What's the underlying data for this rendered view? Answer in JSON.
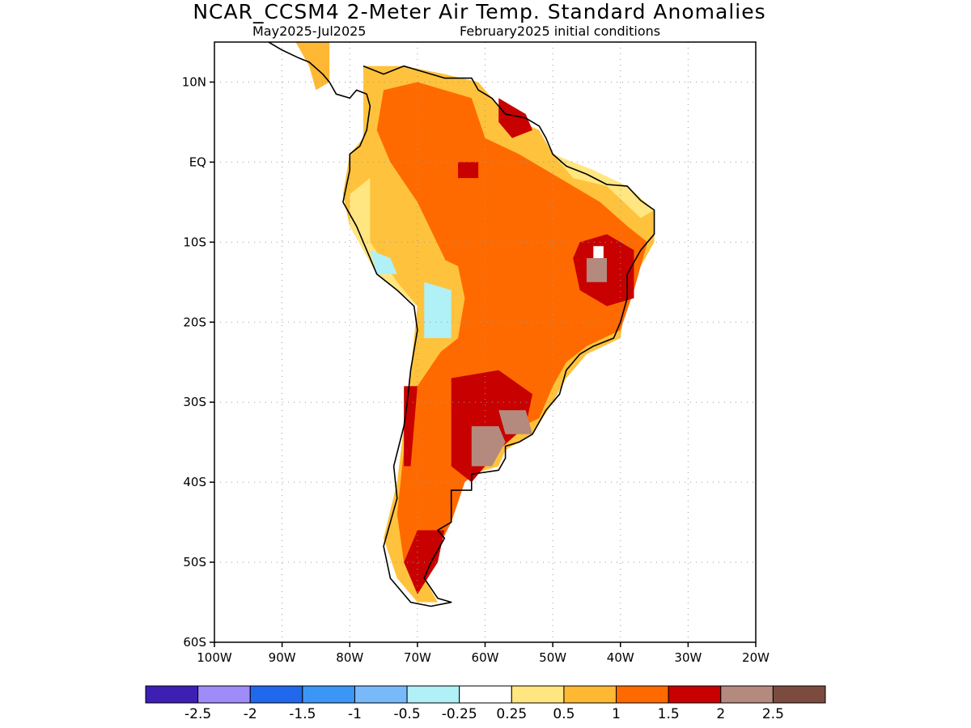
{
  "header": {
    "title": "NCAR_CCSM4 2-Meter Air Temp. Standard Anomalies",
    "period": "May2025-Jul2025",
    "init": "February2025 initial conditions"
  },
  "map": {
    "lon_range": [
      -100,
      -20
    ],
    "lat_range": [
      -60,
      15
    ],
    "x_ticks": [
      {
        "value": -100,
        "label": "100W"
      },
      {
        "value": -90,
        "label": "90W"
      },
      {
        "value": -80,
        "label": "80W"
      },
      {
        "value": -70,
        "label": "70W"
      },
      {
        "value": -60,
        "label": "60W"
      },
      {
        "value": -50,
        "label": "50W"
      },
      {
        "value": -40,
        "label": "40W"
      },
      {
        "value": -30,
        "label": "30W"
      },
      {
        "value": -20,
        "label": "20W"
      }
    ],
    "y_ticks": [
      {
        "value": 10,
        "label": "10N"
      },
      {
        "value": 0,
        "label": "EQ"
      },
      {
        "value": -10,
        "label": "10S"
      },
      {
        "value": -20,
        "label": "20S"
      },
      {
        "value": -30,
        "label": "30S"
      },
      {
        "value": -40,
        "label": "40S"
      },
      {
        "value": -50,
        "label": "50S"
      },
      {
        "value": -60,
        "label": "60S"
      }
    ],
    "gridlines": "dotted",
    "regions": [
      {
        "name": "central-america-warm",
        "level": 0.5,
        "color": "#ffb833",
        "points": [
          [
            -88,
            15
          ],
          [
            -83,
            15
          ],
          [
            -83,
            10
          ],
          [
            -85,
            9
          ],
          [
            -86,
            12
          ]
        ]
      },
      {
        "name": "south-america-base",
        "level": 0.5,
        "color": "#ffc23d",
        "points": [
          [
            -78,
            12
          ],
          [
            -72,
            12
          ],
          [
            -66,
            11
          ],
          [
            -61,
            10
          ],
          [
            -57,
            6
          ],
          [
            -52,
            4
          ],
          [
            -50,
            1
          ],
          [
            -45,
            -1
          ],
          [
            -39,
            -3
          ],
          [
            -35,
            -6
          ],
          [
            -35,
            -10
          ],
          [
            -39,
            -16
          ],
          [
            -40,
            -22
          ],
          [
            -45,
            -24
          ],
          [
            -48,
            -27
          ],
          [
            -50,
            -30
          ],
          [
            -53,
            -34
          ],
          [
            -57,
            -36
          ],
          [
            -58,
            -38
          ],
          [
            -62,
            -39
          ],
          [
            -65,
            -41
          ],
          [
            -65,
            -45
          ],
          [
            -68,
            -48
          ],
          [
            -69,
            -52
          ],
          [
            -67,
            -55
          ],
          [
            -70,
            -55
          ],
          [
            -73,
            -52
          ],
          [
            -75,
            -47
          ],
          [
            -73,
            -40
          ],
          [
            -72,
            -33
          ],
          [
            -71,
            -26
          ],
          [
            -70,
            -18
          ],
          [
            -76,
            -14
          ],
          [
            -80,
            -8
          ],
          [
            -81,
            -4
          ],
          [
            -80,
            1
          ],
          [
            -78,
            3
          ],
          [
            -78,
            8
          ]
        ]
      },
      {
        "name": "pale-yellow-west",
        "level": 0.25,
        "color": "#ffe680",
        "points": [
          [
            -80,
            -4
          ],
          [
            -77,
            -2
          ],
          [
            -77,
            -10
          ],
          [
            -73,
            -15
          ],
          [
            -70,
            -18
          ],
          [
            -76,
            -14
          ],
          [
            -80,
            -8
          ]
        ]
      },
      {
        "name": "orange-main",
        "level": 1.0,
        "color": "#ff6a00",
        "points": [
          [
            -75,
            9
          ],
          [
            -70,
            10
          ],
          [
            -66,
            9
          ],
          [
            -62,
            8
          ],
          [
            -60,
            3
          ],
          [
            -55,
            1
          ],
          [
            -49,
            -2
          ],
          [
            -43,
            -5
          ],
          [
            -39,
            -8
          ],
          [
            -36,
            -10
          ],
          [
            -38,
            -16
          ],
          [
            -40,
            -21
          ],
          [
            -45,
            -23
          ],
          [
            -48,
            -25
          ],
          [
            -50,
            -28
          ],
          [
            -52,
            -32
          ],
          [
            -57,
            -34
          ],
          [
            -59,
            -37
          ],
          [
            -63,
            -40
          ],
          [
            -65,
            -45
          ],
          [
            -68,
            -50
          ],
          [
            -70,
            -53
          ],
          [
            -72,
            -50
          ],
          [
            -73,
            -44
          ],
          [
            -72,
            -36
          ],
          [
            -70,
            -28
          ],
          [
            -66,
            -23
          ],
          [
            -64,
            -17
          ],
          [
            -66,
            -12
          ],
          [
            -70,
            -5
          ],
          [
            -74,
            0
          ],
          [
            -76,
            4
          ]
        ]
      },
      {
        "name": "yellow-bolivia",
        "level": 0.5,
        "color": "#ffc23d",
        "points": [
          [
            -69,
            -11
          ],
          [
            -64,
            -13
          ],
          [
            -63,
            -17
          ],
          [
            -64,
            -22
          ],
          [
            -67,
            -24
          ],
          [
            -70,
            -20
          ],
          [
            -70,
            -15
          ]
        ]
      },
      {
        "name": "red-central-argentina",
        "level": 1.5,
        "color": "#c80000",
        "points": [
          [
            -65,
            -27
          ],
          [
            -58,
            -26
          ],
          [
            -53,
            -29
          ],
          [
            -54,
            -33
          ],
          [
            -58,
            -36
          ],
          [
            -62,
            -40
          ],
          [
            -65,
            -38
          ],
          [
            -65,
            -32
          ]
        ]
      },
      {
        "name": "brown-pampas",
        "level": 2.0,
        "color": "#b48a7e",
        "points": [
          [
            -62,
            -33
          ],
          [
            -58,
            -33
          ],
          [
            -57,
            -35
          ],
          [
            -59,
            -38
          ],
          [
            -62,
            -38
          ]
        ]
      },
      {
        "name": "brown-uruguay",
        "level": 2.0,
        "color": "#b48a7e",
        "points": [
          [
            -58,
            -31
          ],
          [
            -54,
            -31
          ],
          [
            -53,
            -34
          ],
          [
            -57,
            -34
          ]
        ]
      },
      {
        "name": "red-patagonia",
        "level": 1.5,
        "color": "#c80000",
        "points": [
          [
            -70,
            -46
          ],
          [
            -66,
            -46
          ],
          [
            -67,
            -50
          ],
          [
            -70,
            -54
          ],
          [
            -72,
            -50
          ]
        ]
      },
      {
        "name": "red-chile-strip",
        "level": 1.5,
        "color": "#c80000",
        "points": [
          [
            -72,
            -28
          ],
          [
            -70,
            -28
          ],
          [
            -71,
            -38
          ],
          [
            -72,
            -38
          ]
        ]
      },
      {
        "name": "red-ne-brazil",
        "level": 1.5,
        "color": "#c80000",
        "points": [
          [
            -46,
            -10
          ],
          [
            -42,
            -9
          ],
          [
            -38,
            -11
          ],
          [
            -38,
            -17
          ],
          [
            -42,
            -18
          ],
          [
            -46,
            -16
          ],
          [
            -47,
            -12
          ]
        ]
      },
      {
        "name": "brown-ne-brazil",
        "level": 2.0,
        "color": "#b48a7e",
        "points": [
          [
            -45,
            -12
          ],
          [
            -42,
            -12
          ],
          [
            -42,
            -15
          ],
          [
            -45,
            -15
          ]
        ]
      },
      {
        "name": "white-ne-brazil",
        "level": -0.25,
        "color": "#ffffff",
        "points": [
          [
            -44,
            -10.5
          ],
          [
            -42.5,
            -10.5
          ],
          [
            -42.5,
            -12
          ],
          [
            -44,
            -12
          ]
        ]
      },
      {
        "name": "red-guiana",
        "level": 1.5,
        "color": "#c80000",
        "points": [
          [
            -58,
            8
          ],
          [
            -54,
            6
          ],
          [
            -53,
            4
          ],
          [
            -56,
            3
          ],
          [
            -58,
            5
          ]
        ]
      },
      {
        "name": "red-amazon-spot",
        "level": 1.5,
        "color": "#c80000",
        "points": [
          [
            -64,
            0
          ],
          [
            -61,
            0
          ],
          [
            -61,
            -2
          ],
          [
            -64,
            -2
          ]
        ]
      },
      {
        "name": "blue-altiplano",
        "level": -0.5,
        "color": "#77b7ff",
        "points": [
          [
            -68,
            -16
          ],
          [
            -66,
            -17
          ],
          [
            -66,
            -21
          ],
          [
            -68,
            -21
          ]
        ]
      },
      {
        "name": "cyan-altiplano",
        "level": -0.25,
        "color": "#b0f0f7",
        "points": [
          [
            -69,
            -15
          ],
          [
            -65,
            -16
          ],
          [
            -65,
            -22
          ],
          [
            -69,
            -22
          ]
        ]
      },
      {
        "name": "cyan-peru",
        "level": -0.25,
        "color": "#b0f0f7",
        "points": [
          [
            -77,
            -11
          ],
          [
            -74,
            -12
          ],
          [
            -73,
            -14
          ],
          [
            -76,
            -14
          ]
        ]
      },
      {
        "name": "pale-brazil-coast",
        "level": 0.25,
        "color": "#ffe680",
        "points": [
          [
            -50,
            1
          ],
          [
            -44,
            -1
          ],
          [
            -39,
            -3
          ],
          [
            -35,
            -6
          ],
          [
            -37,
            -7
          ],
          [
            -42,
            -3
          ],
          [
            -47,
            -2
          ]
        ]
      }
    ],
    "coast": [
      [
        -78,
        12
      ],
      [
        -75,
        11
      ],
      [
        -72,
        12
      ],
      [
        -70,
        11.5
      ],
      [
        -66,
        10.5
      ],
      [
        -62,
        10.5
      ],
      [
        -61,
        9
      ],
      [
        -59,
        8
      ],
      [
        -57,
        6
      ],
      [
        -54,
        5.5
      ],
      [
        -52,
        4.5
      ],
      [
        -51,
        3
      ],
      [
        -50,
        1
      ],
      [
        -48,
        -0.5
      ],
      [
        -45,
        -1.5
      ],
      [
        -42,
        -2.8
      ],
      [
        -39,
        -3
      ],
      [
        -37,
        -4.8
      ],
      [
        -35,
        -6
      ],
      [
        -35,
        -9
      ],
      [
        -37,
        -11
      ],
      [
        -39,
        -14
      ],
      [
        -39,
        -17
      ],
      [
        -40,
        -20
      ],
      [
        -41,
        -22
      ],
      [
        -44,
        -23
      ],
      [
        -46,
        -24
      ],
      [
        -48,
        -26
      ],
      [
        -49,
        -29
      ],
      [
        -51,
        -31
      ],
      [
        -53,
        -34
      ],
      [
        -55,
        -35
      ],
      [
        -57,
        -35.5
      ],
      [
        -57,
        -37
      ],
      [
        -58,
        -38.5
      ],
      [
        -62,
        -39
      ],
      [
        -62,
        -41
      ],
      [
        -65,
        -41
      ],
      [
        -65,
        -45
      ],
      [
        -67,
        -46
      ],
      [
        -66,
        -47
      ],
      [
        -68,
        -50
      ],
      [
        -69,
        -52
      ],
      [
        -67,
        -54.5
      ],
      [
        -65,
        -55
      ],
      [
        -68,
        -55.5
      ],
      [
        -71,
        -55
      ],
      [
        -74,
        -52
      ],
      [
        -75,
        -48
      ],
      [
        -74,
        -45
      ],
      [
        -73,
        -42
      ],
      [
        -73.5,
        -38
      ],
      [
        -72,
        -33
      ],
      [
        -71.5,
        -30
      ],
      [
        -71,
        -26
      ],
      [
        -70,
        -21
      ],
      [
        -70.5,
        -18
      ],
      [
        -73,
        -16
      ],
      [
        -76,
        -14
      ],
      [
        -77,
        -12
      ],
      [
        -79,
        -8
      ],
      [
        -81,
        -5
      ],
      [
        -80.5,
        -3
      ],
      [
        -80,
        -1
      ],
      [
        -80,
        1
      ],
      [
        -78.5,
        2
      ],
      [
        -77.5,
        4
      ],
      [
        -77,
        7
      ],
      [
        -77.5,
        8.5
      ],
      [
        -79,
        9
      ],
      [
        -80,
        8
      ],
      [
        -82,
        8.5
      ],
      [
        -83,
        10
      ],
      [
        -84,
        11
      ],
      [
        -86,
        12.5
      ],
      [
        -87.5,
        13
      ],
      [
        -90,
        14
      ],
      [
        -92,
        15
      ]
    ]
  },
  "colorbar": {
    "colors": [
      "#3d1fb4",
      "#a08cf8",
      "#2068ec",
      "#3c96f5",
      "#78b9fa",
      "#b0f0f7",
      "#ffffff",
      "#ffe680",
      "#ffb833",
      "#ff6a00",
      "#c80000",
      "#b48a7e",
      "#7a4b3e"
    ],
    "labels": [
      "-2.5",
      "-2",
      "-1.5",
      "-1",
      "-0.5",
      "-0.25",
      "0.25",
      "0.5",
      "1",
      "1.5",
      "2",
      "2.5"
    ]
  }
}
